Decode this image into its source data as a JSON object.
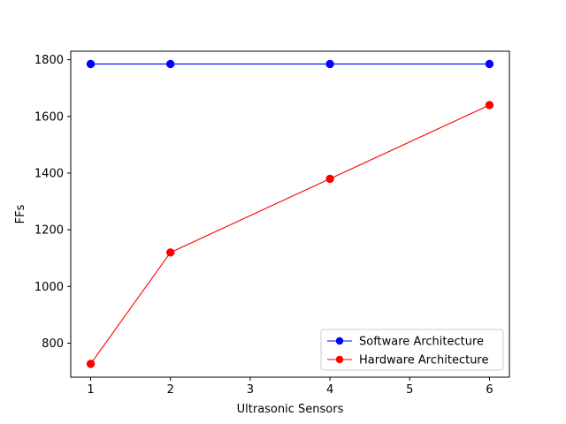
{
  "chart_data": {
    "type": "line",
    "xlabel": "Ultrasonic Sensors",
    "ylabel": "FFs",
    "xlim": [
      0.75,
      6.25
    ],
    "ylim": [
      680,
      1830
    ],
    "xticks": [
      1,
      2,
      3,
      4,
      5,
      6
    ],
    "yticks": [
      800,
      1000,
      1200,
      1400,
      1600,
      1800
    ],
    "grid": false,
    "legend_position": "lower-right",
    "series": [
      {
        "name": "Software Architecture",
        "color": "#0000ff",
        "marker": "circle",
        "x": [
          1,
          2,
          4,
          6
        ],
        "y": [
          1785,
          1785,
          1785,
          1785
        ]
      },
      {
        "name": "Hardware Architecture",
        "color": "#ff0000",
        "marker": "circle",
        "x": [
          1,
          2,
          4,
          6
        ],
        "y": [
          727,
          1120,
          1380,
          1640
        ]
      }
    ]
  }
}
